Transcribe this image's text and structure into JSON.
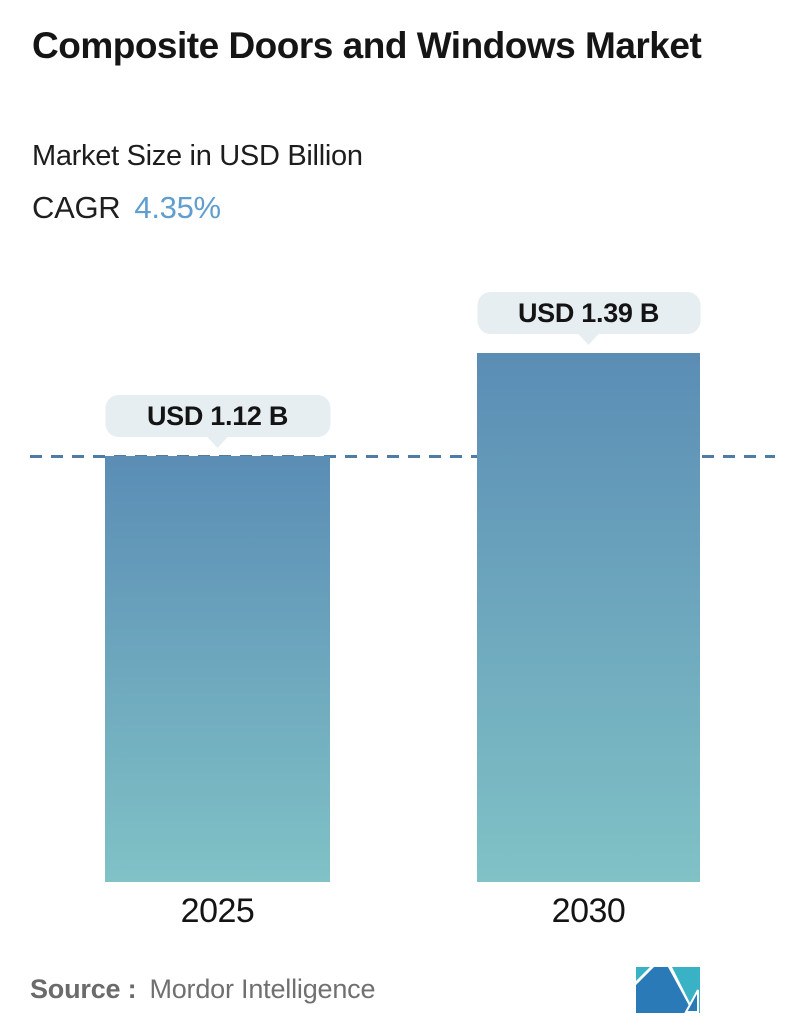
{
  "header": {
    "title": "Composite Doors and Windows Market",
    "subtitle": "Market Size in USD Billion",
    "cagr_label": "CAGR",
    "cagr_value": "4.35%"
  },
  "chart_data": {
    "type": "bar",
    "title": "Composite Doors and Windows Market",
    "subtitle": "Market Size in USD Billion",
    "unit": "USD Billion",
    "cagr_percent": 4.35,
    "categories": [
      "2025",
      "2030"
    ],
    "values": [
      1.12,
      1.39
    ],
    "value_labels": [
      "USD 1.12 B",
      "USD 1.39 B"
    ],
    "ylim": [
      0,
      1.39
    ],
    "grid": false,
    "legend": "none",
    "reference_line": {
      "value": 1.12,
      "style": "dashed",
      "color": "#4e7ca4"
    },
    "bar_gradient_top": "#5b8db5",
    "bar_gradient_bottom": "#80c2c6",
    "bubble_bg": "#e7eef1"
  },
  "footer": {
    "source_label": "Source :",
    "source_name": "Mordor Intelligence",
    "logo_name": "mordor-intelligence-logo",
    "logo_colors": {
      "blue": "#2b7ab8",
      "teal": "#38b2c4"
    }
  },
  "colors": {
    "accent_blue": "#5f9ecf",
    "text_dark": "#151515",
    "text_gray": "#6d6d6d",
    "background": "#ffffff"
  }
}
